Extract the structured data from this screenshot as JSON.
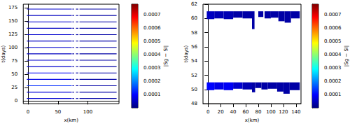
{
  "chart_data": [
    {
      "type": "heatmap_strips",
      "x_label": "x(km)",
      "y_label": "t(days)",
      "colorbar_label": "|Sg − Sl|",
      "xlim": [
        -8,
        152
      ],
      "xticks": [
        0,
        50,
        100
      ],
      "ylim": [
        -5,
        182
      ],
      "yticks": [
        0,
        25,
        50,
        75,
        100,
        125,
        150,
        175
      ],
      "colorbar_lim": [
        0,
        0.00078
      ],
      "colorbar_ticks": [
        0.0001,
        0.0002,
        0.0003,
        0.0004,
        0.0005,
        0.0006,
        0.0007
      ],
      "strip_height": 1.5,
      "segments_x": [
        [
          -2,
          73
        ],
        [
          74,
          77
        ],
        [
          80,
          84
        ],
        [
          86,
          148
        ]
      ],
      "strips": [
        {
          "t": 4,
          "values": [
            6e-05,
            3e-05,
            3e-05,
            3e-05
          ]
        },
        {
          "t": 16,
          "values": [
            7e-05,
            3e-05,
            3e-05,
            3e-05
          ]
        },
        {
          "t": 28,
          "values": [
            0.00013,
            4e-05,
            3e-05,
            3e-05
          ]
        },
        {
          "t": 40,
          "values": [
            8e-05,
            3e-05,
            3e-05,
            3e-05
          ]
        },
        {
          "t": 52,
          "values": [
            9e-05,
            3e-05,
            3e-05,
            3e-05
          ]
        },
        {
          "t": 64,
          "values": [
            6e-05,
            3e-05,
            3e-05,
            3e-05
          ]
        },
        {
          "t": 76,
          "values": [
            6e-05,
            3e-05,
            3e-05,
            3e-05
          ]
        },
        {
          "t": 88,
          "values": [
            5e-05,
            3e-05,
            3e-05,
            3e-05
          ]
        },
        {
          "t": 100,
          "values": [
            6e-05,
            3e-05,
            3e-05,
            3e-05
          ]
        },
        {
          "t": 112,
          "values": [
            5e-05,
            3e-05,
            3e-05,
            3e-05
          ]
        },
        {
          "t": 124,
          "values": [
            6e-05,
            3e-05,
            3e-05,
            3e-05
          ]
        },
        {
          "t": 136,
          "values": [
            5e-05,
            3e-05,
            3e-05,
            3e-05
          ]
        },
        {
          "t": 148,
          "values": [
            6e-05,
            3e-05,
            3e-05,
            3e-05
          ]
        },
        {
          "t": 160,
          "values": [
            5e-05,
            3e-05,
            3e-05,
            3e-05
          ]
        },
        {
          "t": 172,
          "values": [
            6e-05,
            3e-05,
            3e-05,
            3e-05
          ]
        }
      ]
    },
    {
      "type": "heatmap_segments",
      "x_label": "x(km)",
      "y_label": "t(days)",
      "colorbar_label": "|Sg − Sl|",
      "xlim": [
        -8,
        148
      ],
      "xticks": [
        0,
        20,
        40,
        60,
        80,
        100,
        120,
        140
      ],
      "ylim": [
        48,
        62
      ],
      "yticks": [
        48,
        50,
        52,
        54,
        56,
        58,
        60,
        62
      ],
      "colorbar_lim": [
        0,
        0.00078
      ],
      "colorbar_ticks": [
        0.0001,
        0.0002,
        0.0003,
        0.0004,
        0.0005,
        0.0006,
        0.0007
      ],
      "segments": [
        [
          -2,
          10,
          49.9,
          51,
          0.0001
        ],
        [
          10,
          25,
          50.0,
          51,
          8e-05
        ],
        [
          25,
          40,
          49.9,
          51,
          9e-05
        ],
        [
          40,
          55,
          50.1,
          51,
          6e-05
        ],
        [
          55,
          70,
          50.0,
          51,
          4e-05
        ],
        [
          70,
          75,
          49.6,
          51,
          3e-05
        ],
        [
          75,
          85,
          50.2,
          51,
          3e-05
        ],
        [
          85,
          95,
          50.0,
          51,
          3e-05
        ],
        [
          95,
          110,
          50.1,
          51,
          3e-05
        ],
        [
          110,
          120,
          49.7,
          51,
          3e-05
        ],
        [
          120,
          130,
          49.4,
          51,
          3e-05
        ],
        [
          130,
          146,
          49.9,
          51,
          3e-05
        ],
        [
          -2,
          10,
          59.9,
          61,
          5e-05
        ],
        [
          10,
          25,
          60.0,
          61,
          4e-05
        ],
        [
          25,
          40,
          59.9,
          61,
          4e-05
        ],
        [
          40,
          55,
          60.1,
          61,
          3e-05
        ],
        [
          55,
          70,
          60.0,
          61,
          3e-05
        ],
        [
          70,
          74,
          58.5,
          61,
          3e-05
        ],
        [
          80,
          88,
          60.2,
          61,
          3e-05
        ],
        [
          90,
          100,
          60.0,
          61,
          3e-05
        ],
        [
          100,
          112,
          60.1,
          61,
          3e-05
        ],
        [
          112,
          122,
          59.6,
          61,
          3e-05
        ],
        [
          122,
          132,
          59.4,
          61,
          3e-05
        ],
        [
          132,
          146,
          60.0,
          61,
          3e-05
        ]
      ]
    }
  ]
}
